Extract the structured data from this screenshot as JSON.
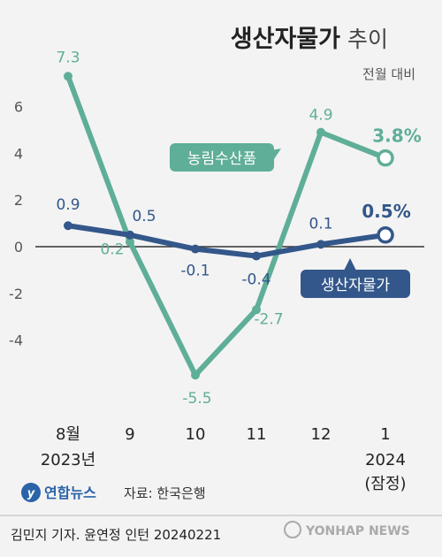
{
  "header": {
    "title_bold": "생산자물가",
    "title_light": "추이",
    "subtitle": "전월 대비"
  },
  "chart_data": {
    "type": "line",
    "categories": [
      {
        "line1": "8월",
        "line2": "2023년"
      },
      {
        "line1": "9",
        "line2": ""
      },
      {
        "line1": "10",
        "line2": ""
      },
      {
        "line1": "11",
        "line2": ""
      },
      {
        "line1": "12",
        "line2": ""
      },
      {
        "line1": "1",
        "line2": "2024",
        "line3": "(잠정)"
      }
    ],
    "series": [
      {
        "name": "농림수산품",
        "values": [
          7.3,
          0.2,
          -5.5,
          -2.7,
          4.9,
          3.8
        ],
        "labels": [
          "7.3",
          "0.2",
          "-5.5",
          "-2.7",
          "4.9",
          "3.8%"
        ],
        "color": "#5fae98"
      },
      {
        "name": "생산자물가",
        "values": [
          0.9,
          0.5,
          -0.1,
          -0.4,
          0.1,
          0.5
        ],
        "labels": [
          "0.9",
          "0.5",
          "-0.1",
          "-0.4",
          "0.1",
          "0.5%"
        ],
        "color": "#33578a"
      }
    ],
    "yticks": [
      6,
      4,
      2,
      0,
      -2,
      -4
    ],
    "ytick_labels": [
      "6",
      "4",
      "2",
      "0",
      "-2",
      "-4"
    ],
    "ylim": [
      -6.5,
      8
    ],
    "grid": false
  },
  "footer": {
    "logo_text": "연합뉴스",
    "source": "자료: 한국은행",
    "credit": "김민지 기자. 윤연정 인턴 20240221",
    "watermark": "YONHAP NEWS"
  }
}
